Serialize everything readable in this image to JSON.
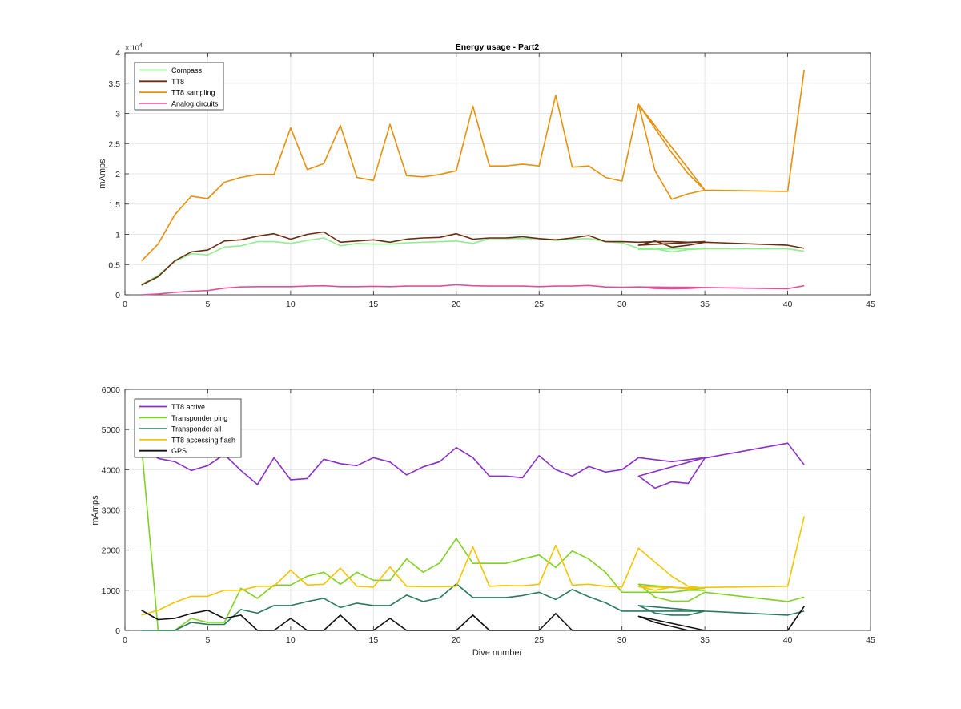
{
  "chart_data": [
    {
      "type": "line",
      "title": "Energy usage - Part2",
      "xlabel": "",
      "ylabel": "mAmps",
      "xlim": [
        0,
        45
      ],
      "ylim": [
        0,
        40000
      ],
      "xticks": [
        0,
        5,
        10,
        15,
        20,
        25,
        30,
        35,
        40,
        45
      ],
      "yticks": [
        0,
        5000,
        10000,
        15000,
        20000,
        25000,
        30000,
        35000,
        40000
      ],
      "ytick_labels": [
        "0",
        "0.5",
        "1",
        "1.5",
        "2",
        "2.5",
        "3",
        "3.5",
        "4"
      ],
      "exponent_label": "× 10",
      "exponent_power": "4",
      "grid": true,
      "legend_position": "top-left",
      "x": [
        1,
        2,
        3,
        4,
        5,
        6,
        7,
        8,
        9,
        10,
        11,
        12,
        13,
        14,
        15,
        16,
        17,
        18,
        19,
        20,
        21,
        22,
        23,
        24,
        25,
        26,
        27,
        28,
        29,
        30,
        31,
        32,
        33,
        34,
        35,
        31,
        32,
        33,
        34,
        35,
        40,
        41
      ],
      "series": [
        {
          "name": "Compass",
          "color": "#90ee90",
          "values": [
            1700,
            3200,
            5500,
            6800,
            6600,
            7900,
            8100,
            8800,
            8800,
            8500,
            9000,
            9400,
            8100,
            8500,
            8400,
            8400,
            8600,
            8700,
            8800,
            8900,
            8500,
            9300,
            9300,
            9300,
            9300,
            9000,
            9200,
            9300,
            8800,
            8600,
            7700,
            7700,
            7700,
            7600,
            7700,
            7500,
            7600,
            7100,
            7500,
            7600,
            7600,
            7200
          ]
        },
        {
          "name": "TT8",
          "color": "#6b2d0f",
          "values": [
            1600,
            3000,
            5600,
            7100,
            7400,
            8900,
            9100,
            9700,
            10100,
            9200,
            10000,
            10400,
            8700,
            8900,
            9100,
            8700,
            9200,
            9400,
            9500,
            10100,
            9200,
            9400,
            9400,
            9600,
            9300,
            9100,
            9400,
            9800,
            8800,
            8800,
            8700,
            8800,
            8800,
            8700,
            8800,
            8200,
            8900,
            7900,
            8200,
            8700,
            8200,
            7700
          ]
        },
        {
          "name": "TT8 sampling",
          "color": "#e8900c",
          "values": [
            5600,
            8400,
            13200,
            16300,
            15900,
            18600,
            19400,
            19900,
            19900,
            27600,
            20700,
            21700,
            28000,
            19400,
            18900,
            28200,
            19700,
            19500,
            19900,
            20500,
            31200,
            21300,
            21300,
            21600,
            21300,
            33000,
            21100,
            21300,
            19400,
            18800,
            31500,
            20500,
            15800,
            16700,
            17300,
            31500,
            27500,
            23500,
            20000,
            17300,
            17100,
            37200
          ]
        },
        {
          "name": "Analog circuits",
          "color": "#e0509a",
          "values": [
            0,
            150,
            400,
            600,
            700,
            1100,
            1300,
            1350,
            1350,
            1350,
            1450,
            1500,
            1350,
            1350,
            1400,
            1350,
            1450,
            1450,
            1450,
            1650,
            1500,
            1450,
            1450,
            1450,
            1350,
            1450,
            1450,
            1550,
            1300,
            1250,
            1300,
            1250,
            1250,
            1250,
            1200,
            1300,
            1050,
            1000,
            1050,
            1200,
            1000,
            1500
          ]
        }
      ]
    },
    {
      "type": "line",
      "title": "",
      "xlabel": "Dive number",
      "ylabel": "mAmps",
      "xlim": [
        0,
        45
      ],
      "ylim": [
        0,
        6000
      ],
      "xticks": [
        0,
        5,
        10,
        15,
        20,
        25,
        30,
        35,
        40,
        45
      ],
      "yticks": [
        0,
        1000,
        2000,
        3000,
        4000,
        5000,
        6000
      ],
      "ytick_labels": [
        "0",
        "1000",
        "2000",
        "3000",
        "4000",
        "5000",
        "6000"
      ],
      "grid": true,
      "legend_position": "top-left",
      "x": [
        1,
        2,
        3,
        4,
        5,
        6,
        7,
        8,
        9,
        10,
        11,
        12,
        13,
        14,
        15,
        16,
        17,
        18,
        19,
        20,
        21,
        22,
        23,
        24,
        25,
        26,
        27,
        28,
        29,
        30,
        31,
        32,
        33,
        34,
        35,
        31,
        32,
        33,
        34,
        35,
        40,
        41
      ],
      "series": [
        {
          "name": "TT8 active",
          "color": "#8b2fc9",
          "values": [
            4600,
            4280,
            4200,
            3980,
            4100,
            4380,
            3980,
            3630,
            4300,
            3750,
            3780,
            4260,
            4150,
            4100,
            4300,
            4190,
            3870,
            4070,
            4200,
            4550,
            4300,
            3840,
            3840,
            3800,
            4350,
            4000,
            3840,
            4080,
            3940,
            4000,
            4300,
            4250,
            4200,
            4250,
            4300,
            3840,
            3540,
            3700,
            3660,
            4290,
            4660,
            4120
          ]
        },
        {
          "name": "Transponder ping",
          "color": "#7ed321",
          "values": [
            4600,
            0,
            0,
            300,
            200,
            200,
            1050,
            800,
            1130,
            1130,
            1350,
            1450,
            1150,
            1450,
            1250,
            1250,
            1780,
            1450,
            1680,
            2290,
            1670,
            1670,
            1670,
            1780,
            1880,
            1570,
            1980,
            1780,
            1450,
            950,
            950,
            950,
            950,
            1000,
            1000,
            1150,
            830,
            730,
            730,
            950,
            720,
            830
          ]
        },
        {
          "name": "Transponder all",
          "color": "#2a7a5e",
          "values": [
            0,
            0,
            0,
            200,
            150,
            150,
            520,
            430,
            620,
            620,
            720,
            800,
            570,
            680,
            620,
            620,
            880,
            720,
            810,
            1160,
            820,
            820,
            820,
            870,
            950,
            770,
            1020,
            840,
            690,
            480,
            480,
            480,
            480,
            480,
            480,
            620,
            430,
            380,
            380,
            480,
            380,
            480
          ]
        },
        {
          "name": "TT8 accessing flash",
          "color": "#f5c400",
          "values": [
            380,
            500,
            700,
            850,
            850,
            1000,
            1000,
            1100,
            1100,
            1500,
            1130,
            1150,
            1550,
            1100,
            1080,
            1580,
            1100,
            1090,
            1090,
            1100,
            2080,
            1100,
            1120,
            1110,
            1150,
            2120,
            1130,
            1150,
            1100,
            1080,
            2050,
            1700,
            1350,
            1100,
            1050,
            1090,
            1000,
            1080,
            1030,
            1070,
            1100,
            2840
          ]
        },
        {
          "name": "GPS",
          "color": "#111111",
          "values": [
            500,
            270,
            300,
            420,
            500,
            300,
            380,
            0,
            0,
            300,
            0,
            0,
            380,
            0,
            0,
            300,
            0,
            0,
            0,
            0,
            380,
            0,
            0,
            0,
            0,
            420,
            0,
            0,
            0,
            0,
            0,
            0,
            0,
            0,
            0,
            350,
            200,
            100,
            0,
            0,
            0,
            600
          ]
        }
      ]
    }
  ]
}
